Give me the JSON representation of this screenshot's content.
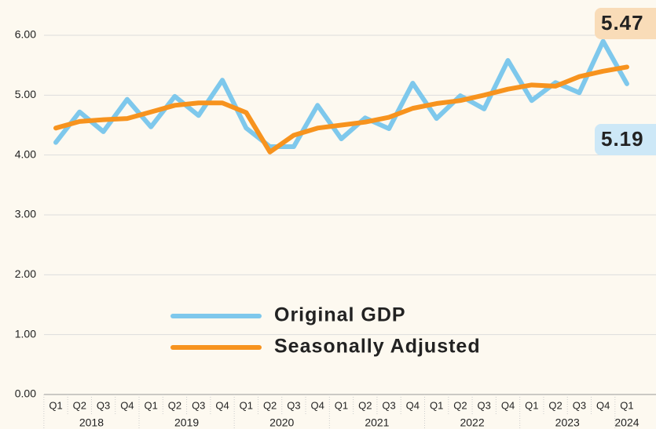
{
  "chart_data": {
    "type": "line",
    "categories": [
      "Q1",
      "Q2",
      "Q3",
      "Q4",
      "Q1",
      "Q2",
      "Q3",
      "Q4",
      "Q1",
      "Q2",
      "Q3",
      "Q4",
      "Q1",
      "Q2",
      "Q3",
      "Q4",
      "Q1",
      "Q2",
      "Q3",
      "Q4",
      "Q1",
      "Q2",
      "Q3",
      "Q4",
      "Q1"
    ],
    "category_groups": [
      "2018",
      "2019",
      "2020",
      "2021",
      "2022",
      "2023",
      "2024"
    ],
    "series": [
      {
        "name": "Original GDP",
        "color": "#7ec8ec",
        "label_color": "#cde8f7",
        "values": [
          4.21,
          4.72,
          4.39,
          4.93,
          4.47,
          4.98,
          4.66,
          5.25,
          4.45,
          4.14,
          4.14,
          4.83,
          4.27,
          4.62,
          4.44,
          5.2,
          4.61,
          4.99,
          4.77,
          5.58,
          4.91,
          5.21,
          5.04,
          5.9,
          5.19
        ]
      },
      {
        "name": "Seasonally Adjusted",
        "color": "#f7931e",
        "label_color": "#f9dcb8",
        "values": [
          4.45,
          4.56,
          4.59,
          4.61,
          4.72,
          4.83,
          4.87,
          4.87,
          4.71,
          4.05,
          4.33,
          4.45,
          4.5,
          4.55,
          4.63,
          4.78,
          4.86,
          4.91,
          5.0,
          5.1,
          5.17,
          5.15,
          5.31,
          5.4,
          5.47
        ]
      }
    ],
    "ylim": [
      0,
      6
    ],
    "yticks": [
      {
        "value": 0,
        "label": "0.00"
      },
      {
        "value": 1,
        "label": "1.00"
      },
      {
        "value": 2,
        "label": "2.00"
      },
      {
        "value": 3,
        "label": "3.00"
      },
      {
        "value": 4,
        "label": "4.00"
      },
      {
        "value": 5,
        "label": "5.00"
      },
      {
        "value": 6,
        "label": "6.00"
      }
    ],
    "grid": true,
    "label_last": true
  }
}
